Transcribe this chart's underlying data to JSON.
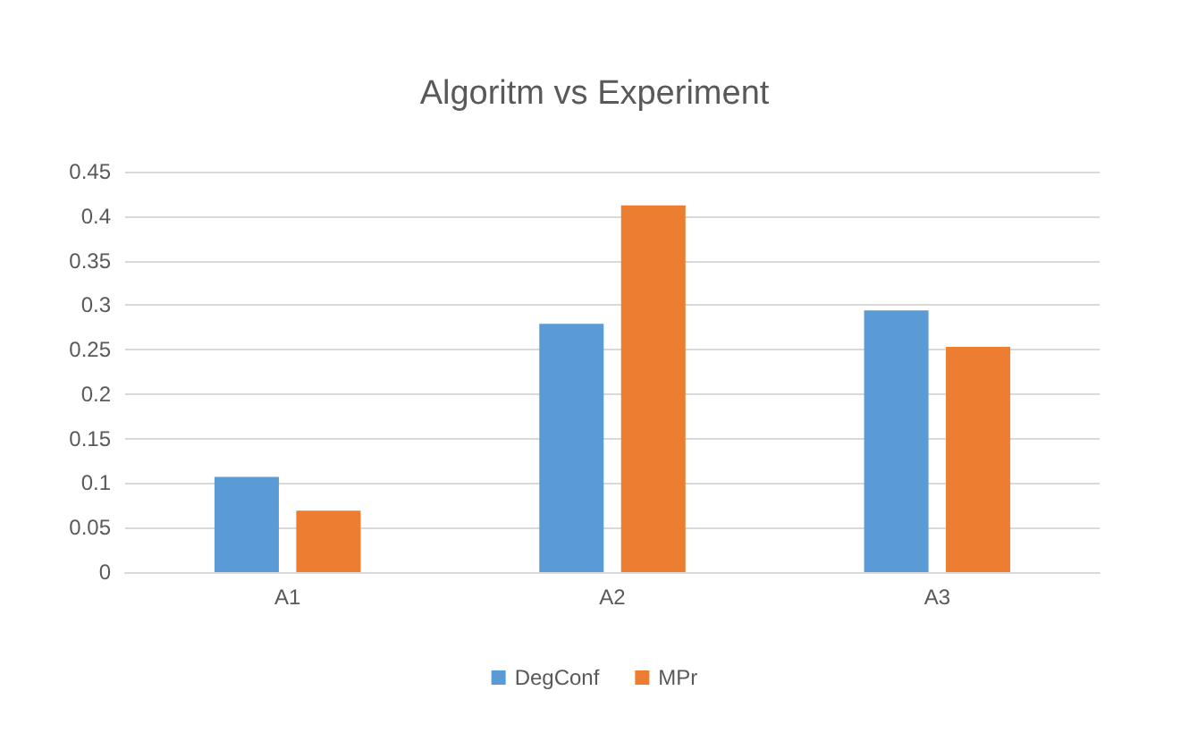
{
  "chart_data": {
    "type": "bar",
    "title": "Algoritm vs Experiment",
    "categories": [
      "A1",
      "A2",
      "A3"
    ],
    "series": [
      {
        "name": "DegConf",
        "color": "#5b9bd5",
        "values": [
          0.107,
          0.279,
          0.294
        ]
      },
      {
        "name": "MPr",
        "color": "#ed7d31",
        "values": [
          0.069,
          0.412,
          0.253
        ]
      }
    ],
    "ylim": [
      0,
      0.45
    ],
    "yticks": [
      0,
      0.05,
      0.1,
      0.15,
      0.2,
      0.25,
      0.3,
      0.35,
      0.4,
      0.45
    ],
    "grid": "y",
    "legend": "bottom"
  }
}
